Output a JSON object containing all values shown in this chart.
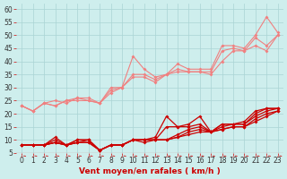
{
  "background_color": "#ceeeed",
  "grid_color": "#aad4d4",
  "xlabel": "Vent moyen/en rafales ( km/h )",
  "xlim": [
    -0.5,
    23.5
  ],
  "ylim": [
    5,
    62
  ],
  "yticks": [
    5,
    10,
    15,
    20,
    25,
    30,
    35,
    40,
    45,
    50,
    55,
    60
  ],
  "xticks": [
    0,
    1,
    2,
    3,
    4,
    5,
    6,
    7,
    8,
    9,
    10,
    11,
    12,
    13,
    14,
    15,
    16,
    17,
    18,
    19,
    20,
    21,
    22,
    23
  ],
  "x": [
    0,
    1,
    2,
    3,
    4,
    5,
    6,
    7,
    8,
    9,
    10,
    11,
    12,
    13,
    14,
    15,
    16,
    17,
    18,
    19,
    20,
    21,
    22,
    23
  ],
  "series_light": [
    [
      23,
      21,
      24,
      23,
      25,
      25,
      25,
      24,
      30,
      30,
      42,
      37,
      34,
      35,
      39,
      37,
      37,
      37,
      46,
      46,
      45,
      50,
      57,
      51
    ],
    [
      23,
      21,
      24,
      23,
      25,
      26,
      26,
      24,
      29,
      30,
      35,
      35,
      33,
      35,
      37,
      36,
      36,
      36,
      44,
      45,
      44,
      49,
      46,
      50
    ],
    [
      23,
      21,
      24,
      25,
      24,
      26,
      25,
      24,
      28,
      30,
      34,
      34,
      32,
      35,
      36,
      36,
      36,
      35,
      40,
      44,
      44,
      46,
      44,
      50
    ]
  ],
  "series_dark": [
    [
      8,
      8,
      8,
      11,
      8,
      10,
      10,
      6,
      8,
      8,
      10,
      10,
      11,
      19,
      15,
      16,
      19,
      13,
      16,
      16,
      17,
      21,
      22,
      22
    ],
    [
      8,
      8,
      8,
      10,
      8,
      10,
      10,
      6,
      8,
      8,
      10,
      10,
      10,
      15,
      15,
      15,
      16,
      13,
      16,
      16,
      16,
      20,
      22,
      22
    ],
    [
      8,
      8,
      8,
      9,
      8,
      9,
      10,
      6,
      8,
      8,
      10,
      10,
      10,
      10,
      12,
      14,
      15,
      13,
      15,
      16,
      16,
      19,
      21,
      22
    ],
    [
      8,
      8,
      8,
      9,
      8,
      9,
      9,
      6,
      8,
      8,
      10,
      10,
      10,
      10,
      11,
      13,
      14,
      13,
      14,
      15,
      15,
      18,
      20,
      21
    ],
    [
      8,
      8,
      8,
      9,
      8,
      9,
      9,
      6,
      8,
      8,
      10,
      9,
      10,
      10,
      11,
      12,
      13,
      13,
      14,
      15,
      15,
      17,
      19,
      21
    ]
  ],
  "light_color": "#f08080",
  "dark_color": "#cc0000",
  "axis_label_color": "#cc0000",
  "tick_color": "#cc0000",
  "axis_fontsize": 6.5,
  "tick_fontsize": 5.5
}
